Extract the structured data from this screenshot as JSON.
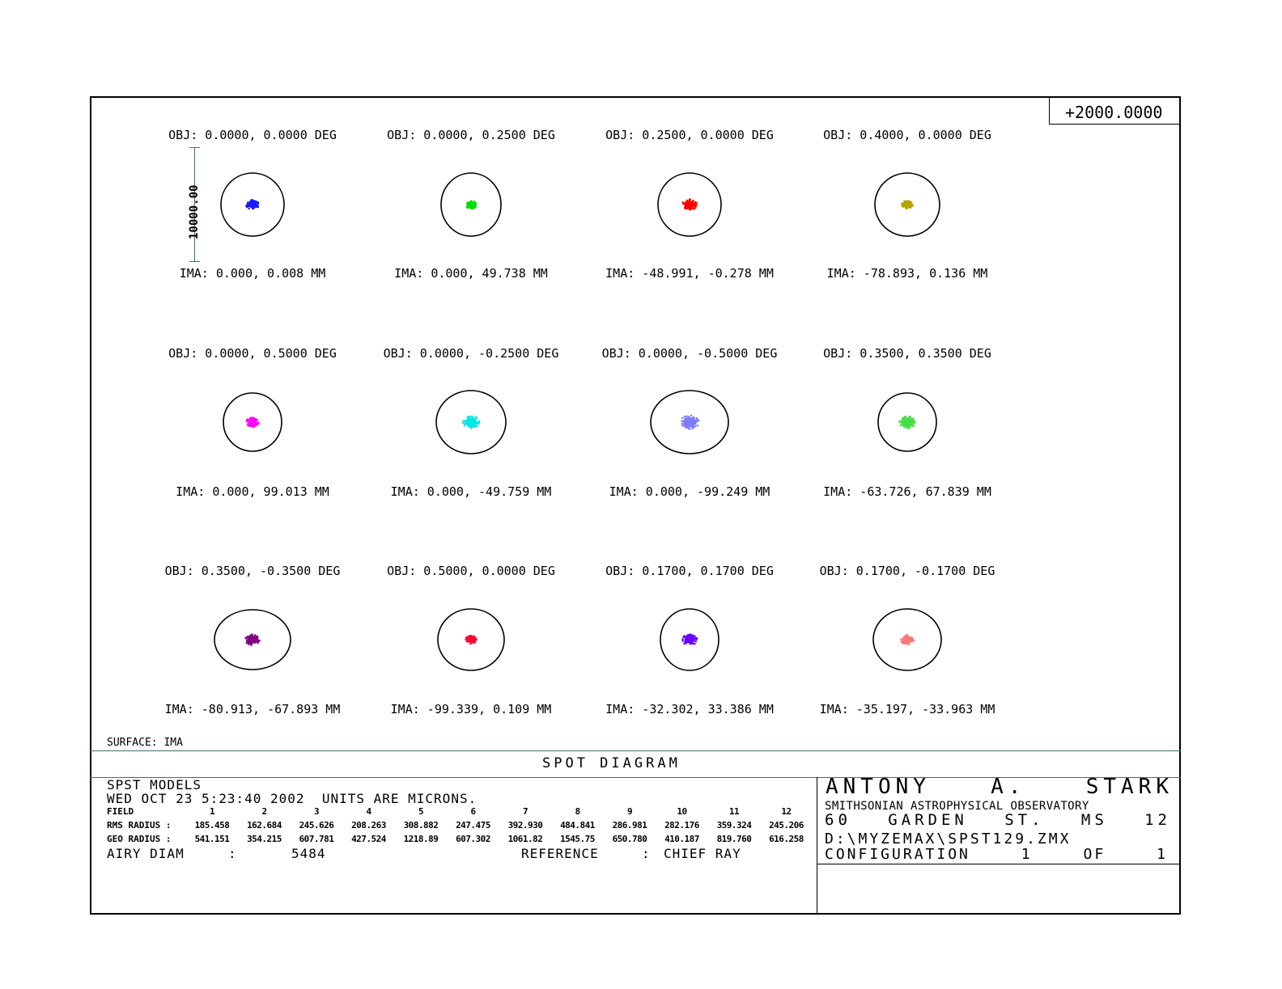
{
  "scale_box": "+2000.0000",
  "scale_bar_label": "10000.00",
  "surface_label": "SURFACE: IMA",
  "title": "SPOT DIAGRAM",
  "chart_data": {
    "type": "scatter",
    "title": "SPOT DIAGRAM",
    "units": "MICRONS",
    "scale_bar": 10000.0,
    "fields": [
      {
        "obj": "OBJ: 0.0000, 0.0000 DEG",
        "ima": "IMA: 0.000, 0.008 MM",
        "color": "#1a1aff",
        "rms": 185.458,
        "geo": 541.151
      },
      {
        "obj": "OBJ: 0.0000, 0.2500 DEG",
        "ima": "IMA: 0.000, 49.738 MM",
        "color": "#00dd00",
        "rms": 162.684,
        "geo": 354.215
      },
      {
        "obj": "OBJ: 0.2500, 0.0000 DEG",
        "ima": "IMA: -48.991, -0.278 MM",
        "color": "#ff0000",
        "rms": 245.626,
        "geo": 607.781
      },
      {
        "obj": "OBJ: 0.4000, 0.0000 DEG",
        "ima": "IMA: -78.893, 0.136 MM",
        "color": "#b8a200",
        "rms": 208.263,
        "geo": 427.524
      },
      {
        "obj": "OBJ: 0.0000, 0.5000 DEG",
        "ima": "IMA: 0.000, 99.013 MM",
        "color": "#ff00ff",
        "rms": 308.882,
        "geo": 1218.89
      },
      {
        "obj": "OBJ: 0.0000, -0.2500 DEG",
        "ima": "IMA: 0.000, -49.759 MM",
        "color": "#00e6e6",
        "rms": 247.475,
        "geo": 607.302
      },
      {
        "obj": "OBJ: 0.0000, -0.5000 DEG",
        "ima": "IMA: 0.000, -99.249 MM",
        "color": "#7b7bff",
        "rms": 392.93,
        "geo": 1061.82
      },
      {
        "obj": "OBJ: 0.3500, 0.3500 DEG",
        "ima": "IMA: -63.726, 67.839 MM",
        "color": "#44dd44",
        "rms": 484.841,
        "geo": 1545.75
      },
      {
        "obj": "OBJ: 0.3500, -0.3500 DEG",
        "ima": "IMA: -80.913, -67.893 MM",
        "color": "#800080",
        "rms": 286.981,
        "geo": 650.78
      },
      {
        "obj": "OBJ: 0.5000, 0.0000 DEG",
        "ima": "IMA: -99.339, 0.109 MM",
        "color": "#ff0033",
        "rms": 282.176,
        "geo": 410.187
      },
      {
        "obj": "OBJ: 0.1700, 0.1700 DEG",
        "ima": "IMA: -32.302, 33.386 MM",
        "color": "#6a00ff",
        "rms": 359.324,
        "geo": 819.76
      },
      {
        "obj": "OBJ: 0.1700, -0.1700 DEG",
        "ima": "IMA: -35.197, -33.963 MM",
        "color": "#ff7777",
        "rms": 245.206,
        "geo": 616.258
      }
    ]
  },
  "info": {
    "model": "SPST MODELS",
    "date_line": "WED OCT 23 5:23:40 2002  UNITS ARE MICRONS.",
    "field_label": "FIELD",
    "rms_label": "RMS RADIUS :",
    "geo_label": "GEO RADIUS :",
    "field_numbers": [
      "1",
      "2",
      "3",
      "4",
      "5",
      "6",
      "7",
      "8",
      "9",
      "10",
      "11",
      "12"
    ],
    "rms_values": [
      "185.458",
      "162.684",
      "245.626",
      "208.263",
      "308.882",
      "247.475",
      "392.930",
      "484.841",
      "286.981",
      "282.176",
      "359.324",
      "245.206"
    ],
    "geo_values": [
      "541.151",
      "354.215",
      "607.781",
      "427.524",
      "1218.89",
      "607.302",
      "1061.82",
      "1545.75",
      "650.780",
      "410.187",
      "819.760",
      "616.258"
    ],
    "airy_label": "AIRY DIAM",
    "airy_colon": ":",
    "airy_value": "5484",
    "reference_label": "REFERENCE",
    "reference_colon": ":",
    "reference_value": "CHIEF RAY"
  },
  "author": {
    "name": "ANTONY A. STARK",
    "org": "SMITHSONIAN ASTROPHYSICAL OBSERVATORY",
    "address": "60 GARDEN ST. MS 12",
    "file": "D:\\MYZEMAX\\SPST129.ZMX",
    "config": "CONFIGURATION 1 OF 1"
  }
}
